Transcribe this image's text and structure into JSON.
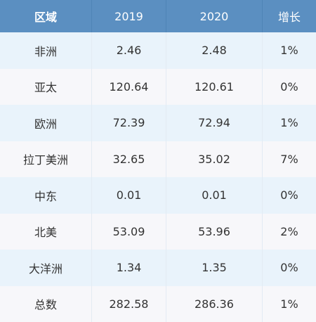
{
  "chart_data": {
    "type": "table",
    "columns": [
      "区域",
      "2019",
      "2020",
      "增长"
    ],
    "rows": [
      {
        "region": "非洲",
        "y2019": "2.46",
        "y2020": "2.48",
        "growth": "1%"
      },
      {
        "region": "亚太",
        "y2019": "120.64",
        "y2020": "120.61",
        "growth": "0%"
      },
      {
        "region": "欧洲",
        "y2019": "72.39",
        "y2020": "72.94",
        "growth": "1%"
      },
      {
        "region": "拉丁美洲",
        "y2019": "32.65",
        "y2020": "35.02",
        "growth": "7%"
      },
      {
        "region": "中东",
        "y2019": "0.01",
        "y2020": "0.01",
        "growth": "0%"
      },
      {
        "region": "北美",
        "y2019": "53.09",
        "y2020": "53.96",
        "growth": "2%"
      },
      {
        "region": "大洋洲",
        "y2019": "1.34",
        "y2020": "1.35",
        "growth": "0%"
      },
      {
        "region": "总数",
        "y2019": "282.58",
        "y2020": "286.36",
        "growth": "1%"
      }
    ]
  },
  "colors": {
    "header_bg": "#5b8fc1",
    "row_odd": "#e9f3fb",
    "row_even": "#f7f7fa"
  }
}
